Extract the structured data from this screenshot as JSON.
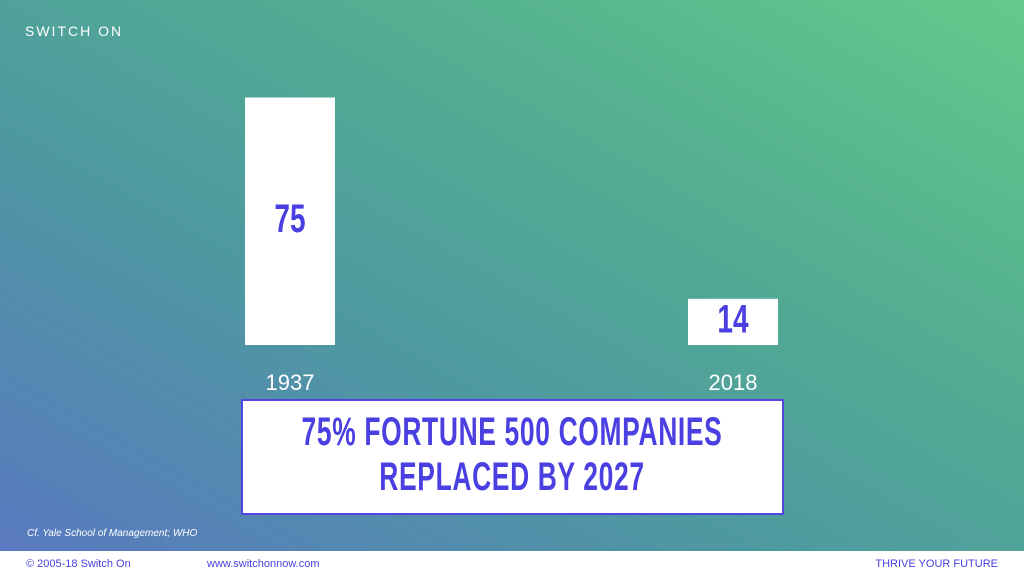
{
  "brand": "SWITCH ON",
  "chart_data": {
    "type": "bar",
    "title": "75% FORTUNE 500 COMPANIES REPLACED BY 2027",
    "categories": [
      "1937",
      "2018"
    ],
    "values": [
      75,
      14
    ],
    "color": "#ffffff"
  },
  "source": "Cf. Yale School of Management; WHO",
  "footer": {
    "copyright": "© 2005-18 Switch On",
    "url": "www.switchonnow.com",
    "tagline": "THRIVE YOUR FUTURE"
  }
}
